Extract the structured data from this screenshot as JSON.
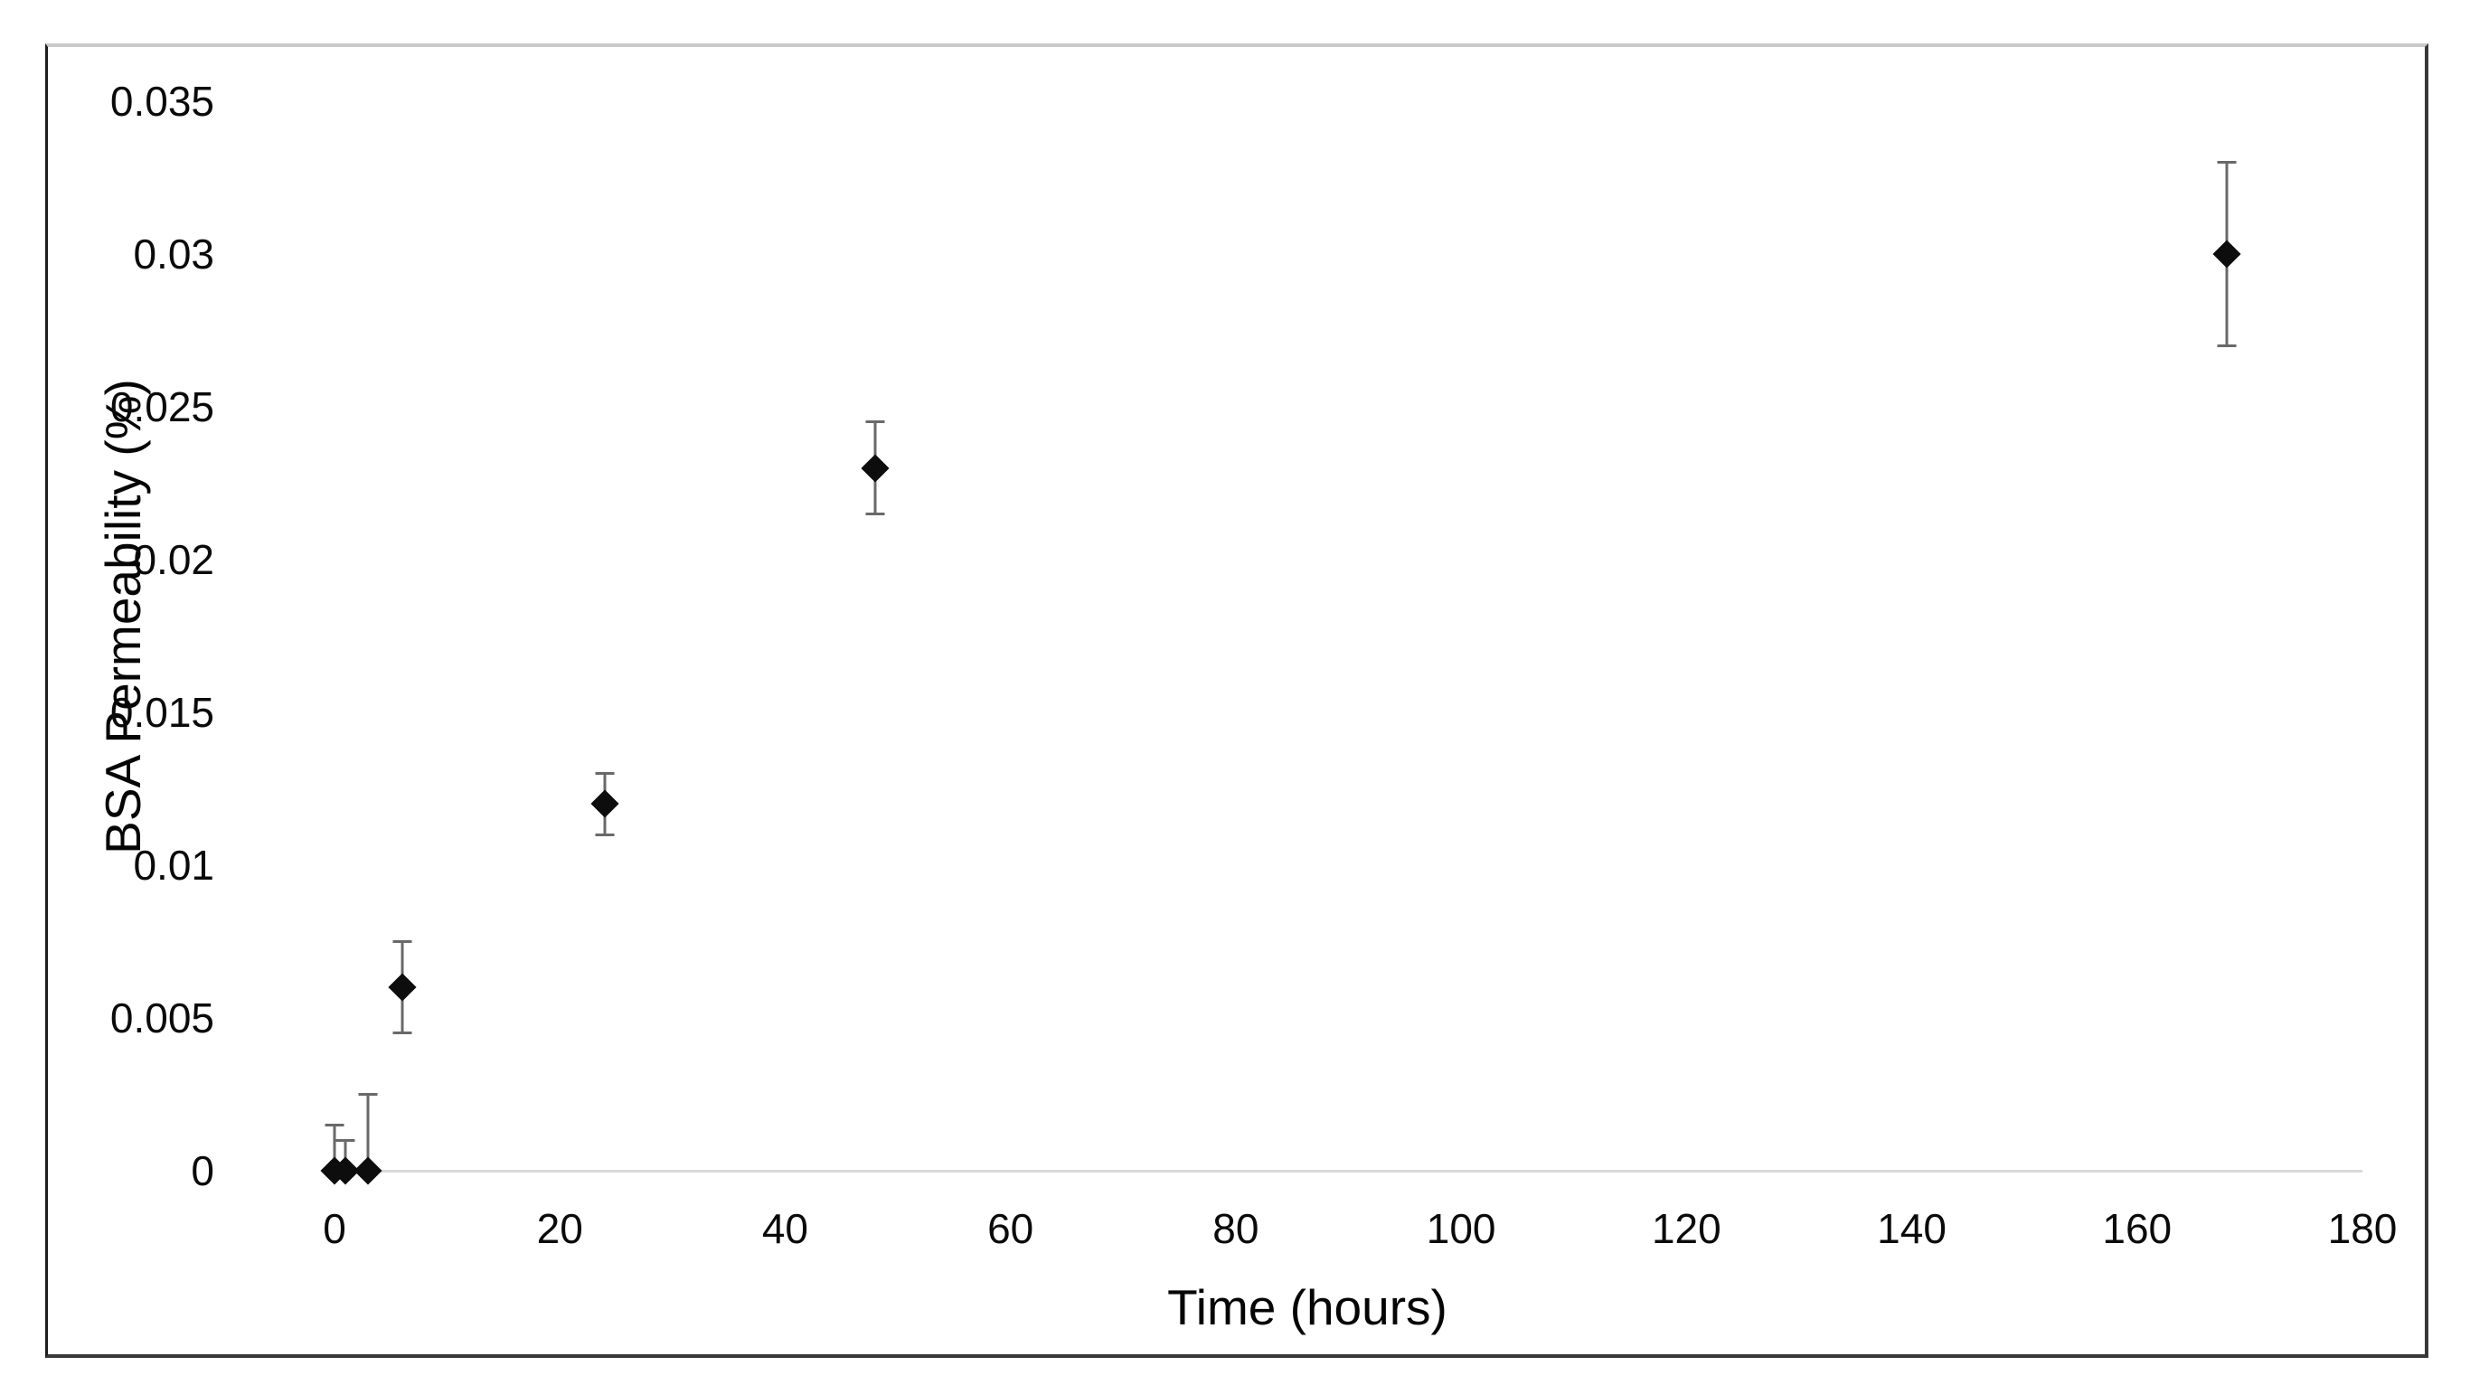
{
  "chart_data": {
    "type": "scatter",
    "title": "",
    "xlabel": "Time (hours)",
    "ylabel": "BSA Permeability (%)",
    "xlim": [
      0,
      180
    ],
    "ylim": [
      0,
      0.035
    ],
    "grid": "off",
    "legend": "none",
    "baseline_at_y": 0,
    "x_axis": {
      "ticks": [
        {
          "v": 0,
          "label": "0"
        },
        {
          "v": 20,
          "label": "20"
        },
        {
          "v": 40,
          "label": "40"
        },
        {
          "v": 60,
          "label": "60"
        },
        {
          "v": 80,
          "label": "80"
        },
        {
          "v": 100,
          "label": "100"
        },
        {
          "v": 120,
          "label": "120"
        },
        {
          "v": 140,
          "label": "140"
        },
        {
          "v": 160,
          "label": "160"
        },
        {
          "v": 180,
          "label": "180"
        }
      ]
    },
    "y_axis": {
      "ticks": [
        {
          "v": 0,
          "label": "0"
        },
        {
          "v": 0.005,
          "label": "0.005"
        },
        {
          "v": 0.01,
          "label": "0.01"
        },
        {
          "v": 0.015,
          "label": "0.015"
        },
        {
          "v": 0.02,
          "label": "0.02"
        },
        {
          "v": 0.025,
          "label": "0.025"
        },
        {
          "v": 0.03,
          "label": "0.03"
        },
        {
          "v": 0.035,
          "label": "0.035"
        }
      ]
    },
    "series": [
      {
        "name": "BSA permeability",
        "marker": "diamond",
        "points": [
          {
            "x": 0,
            "y": 0,
            "err_up": 0.0015,
            "err_down": 0
          },
          {
            "x": 1,
            "y": 0,
            "err_up": 0.001,
            "err_down": 0
          },
          {
            "x": 3,
            "y": 0,
            "err_up": 0.0025,
            "err_down": 0
          },
          {
            "x": 6,
            "y": 0.006,
            "err_up": 0.0015,
            "err_down": 0.0015
          },
          {
            "x": 24,
            "y": 0.012,
            "err_up": 0.001,
            "err_down": 0.001
          },
          {
            "x": 48,
            "y": 0.023,
            "err_up": 0.0015,
            "err_down": 0.0015
          },
          {
            "x": 168,
            "y": 0.03,
            "err_up": 0.003,
            "err_down": 0.003
          }
        ]
      }
    ],
    "colors": {
      "marker": "#0d0d0d",
      "error_bar": "#696969",
      "baseline": "#d9d9d9",
      "text": "#0a0a0a",
      "frame_top": "#c9c9c9",
      "frame_dark": "#383838",
      "background": "#ffffff"
    }
  }
}
